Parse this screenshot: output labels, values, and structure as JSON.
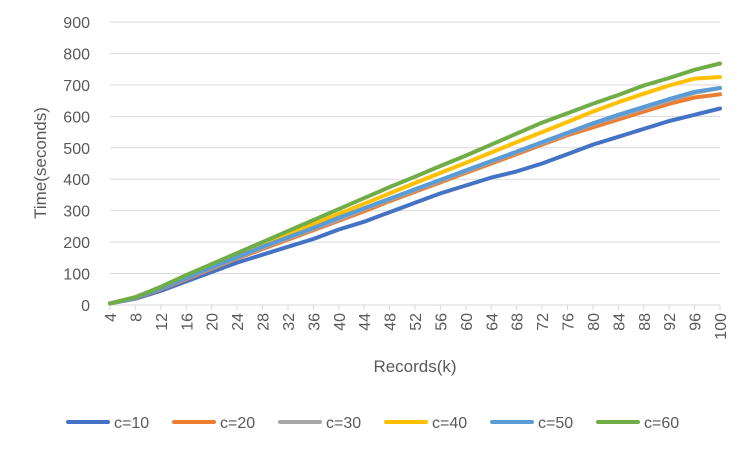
{
  "chart_data": {
    "type": "line",
    "title": "",
    "xlabel": "Records(k)",
    "ylabel": "Time(seconds)",
    "x": [
      4,
      8,
      12,
      16,
      20,
      24,
      28,
      32,
      36,
      40,
      44,
      48,
      52,
      56,
      60,
      64,
      68,
      72,
      76,
      80,
      84,
      88,
      92,
      96,
      100
    ],
    "ylim": [
      0,
      900
    ],
    "yticks": [
      0,
      100,
      200,
      300,
      400,
      500,
      600,
      700,
      800,
      900
    ],
    "grid": true,
    "legend_position": "bottom",
    "series": [
      {
        "name": "c=10",
        "color": "#4472C4",
        "values": [
          5,
          20,
          45,
          75,
          105,
          135,
          160,
          185,
          210,
          240,
          265,
          295,
          325,
          355,
          380,
          405,
          425,
          450,
          480,
          510,
          535,
          560,
          585,
          605,
          625
        ]
      },
      {
        "name": "c=20",
        "color": "#ED7D31",
        "values": [
          5,
          22,
          50,
          82,
          115,
          148,
          178,
          208,
          238,
          268,
          298,
          330,
          360,
          390,
          420,
          450,
          480,
          510,
          540,
          565,
          590,
          615,
          640,
          660,
          670
        ]
      },
      {
        "name": "c=30",
        "color": "#A5A5A5",
        "values": [
          5,
          23,
          52,
          85,
          118,
          150,
          182,
          212,
          242,
          272,
          305,
          335,
          365,
          395,
          425,
          455,
          485,
          515,
          545,
          575,
          600,
          625,
          650,
          675,
          690
        ]
      },
      {
        "name": "c=40",
        "color": "#FFC000",
        "values": [
          5,
          24,
          55,
          90,
          125,
          158,
          192,
          225,
          258,
          290,
          322,
          355,
          388,
          420,
          452,
          485,
          518,
          550,
          582,
          615,
          645,
          672,
          698,
          720,
          725
        ]
      },
      {
        "name": "c=50",
        "color": "#5B9BD5",
        "values": [
          5,
          23,
          52,
          86,
          120,
          152,
          185,
          215,
          245,
          278,
          308,
          338,
          368,
          398,
          428,
          458,
          488,
          518,
          548,
          578,
          605,
          630,
          655,
          678,
          690
        ]
      },
      {
        "name": "c=60",
        "color": "#70AD47",
        "values": [
          5,
          25,
          58,
          95,
          130,
          165,
          200,
          235,
          270,
          305,
          340,
          375,
          408,
          442,
          475,
          510,
          545,
          580,
          610,
          640,
          668,
          698,
          722,
          748,
          768
        ]
      }
    ]
  }
}
